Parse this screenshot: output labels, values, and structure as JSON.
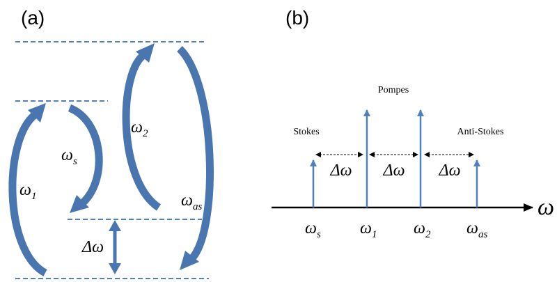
{
  "panel_a": "(a)",
  "panel_b": "(b)",
  "labels_a": {
    "delta": "Δω",
    "freqs": [
      {
        "base": "ω",
        "sub": "1"
      },
      {
        "base": "ω",
        "sub": "s"
      },
      {
        "base": "ω",
        "sub": "2"
      },
      {
        "base": "ω",
        "sub": "as"
      }
    ]
  },
  "labels_b": {
    "pompes": "Pompes",
    "stokes": "Stokes",
    "anti_stokes": "Anti-Stokes",
    "delta": [
      "Δω",
      "Δω",
      "Δω"
    ],
    "axis": "ω",
    "freqs": [
      {
        "base": "ω",
        "sub": "s"
      },
      {
        "base": "ω",
        "sub": "1"
      },
      {
        "base": "ω",
        "sub": "2"
      },
      {
        "base": "ω",
        "sub": "as"
      }
    ]
  }
}
